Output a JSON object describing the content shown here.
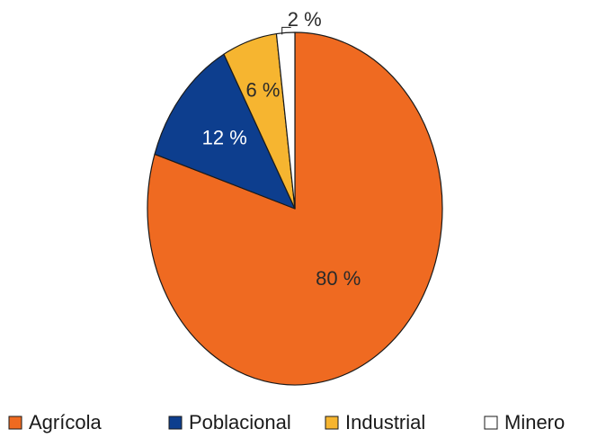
{
  "chart_data": {
    "type": "pie",
    "categories": [
      "Agrícola",
      "Poblacional",
      "Industrial",
      "Minero"
    ],
    "values": [
      80,
      12,
      6,
      2
    ],
    "data_labels": [
      "80 %",
      "12 %",
      "6 %",
      "2 %"
    ],
    "colors": [
      "#ef6a21",
      "#0d3e8e",
      "#f6b530",
      "#ffffff"
    ],
    "label_colors": [
      "#2a2a2a",
      "#ffffff",
      "#2a2a2a",
      "#2a2a2a"
    ],
    "start_angle": "top",
    "direction": "clockwise",
    "legend_position": "bottom"
  }
}
